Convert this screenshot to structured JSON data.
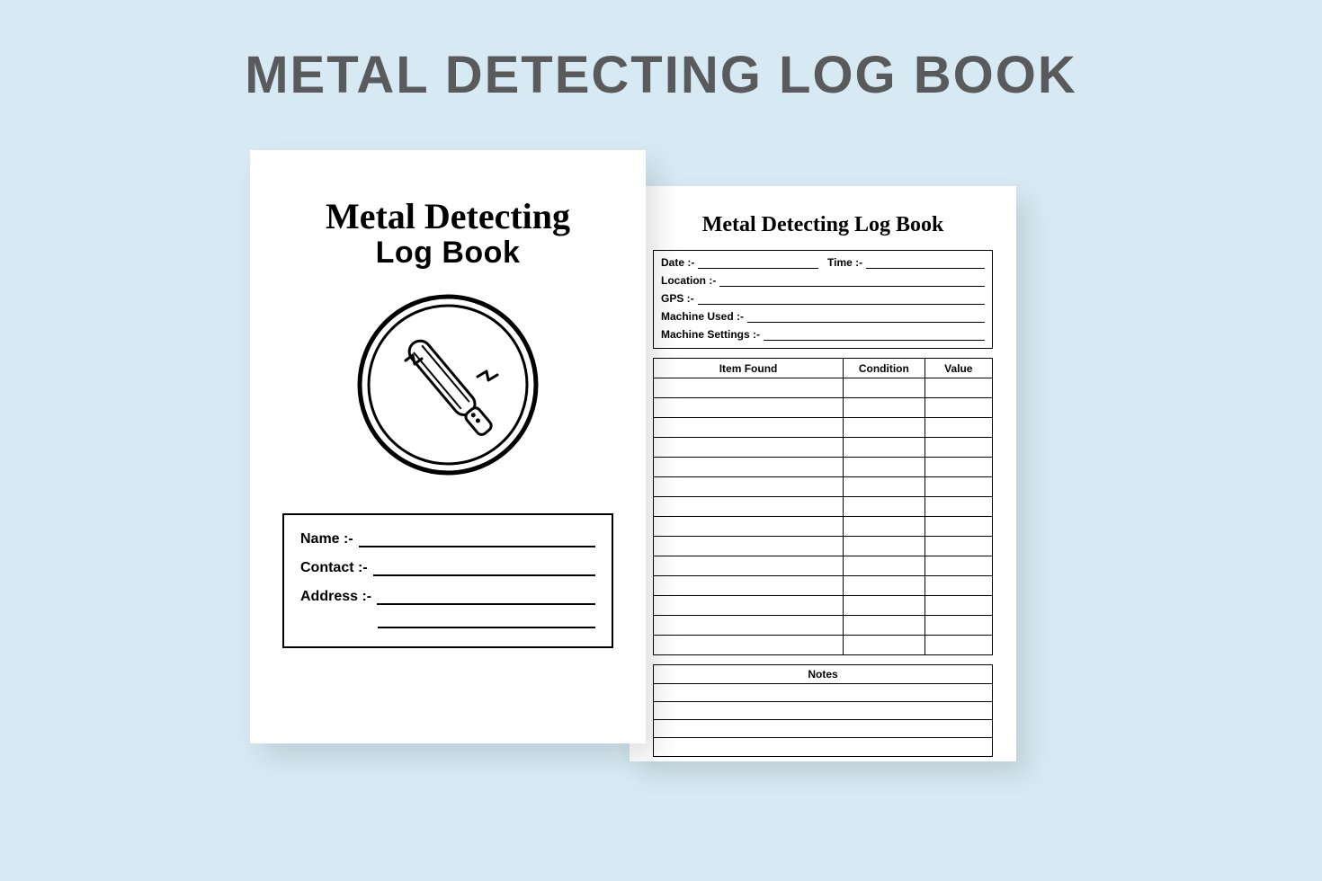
{
  "banner": {
    "title": "METAL DETECTING LOG BOOK"
  },
  "cover": {
    "script_title": "Metal Detecting",
    "bold_title": "Log Book",
    "fields": {
      "name": "Name :-",
      "contact": "Contact :-",
      "address": "Address :-"
    }
  },
  "inner": {
    "title": "Metal Detecting Log Book",
    "meta": {
      "date": "Date :-",
      "time": "Time :-",
      "location": "Location :-",
      "gps": "GPS :-",
      "machine_used": "Machine Used :-",
      "machine_settings": "Machine Settings :-"
    },
    "table": {
      "columns": [
        "Item Found",
        "Condition",
        "Value"
      ],
      "row_count": 14
    },
    "notes": {
      "header": "Notes",
      "line_count": 4
    }
  },
  "colors": {
    "background": "#d7eaf3",
    "page": "#ffffff",
    "banner_text": "#595a5c",
    "ink": "#000000"
  }
}
